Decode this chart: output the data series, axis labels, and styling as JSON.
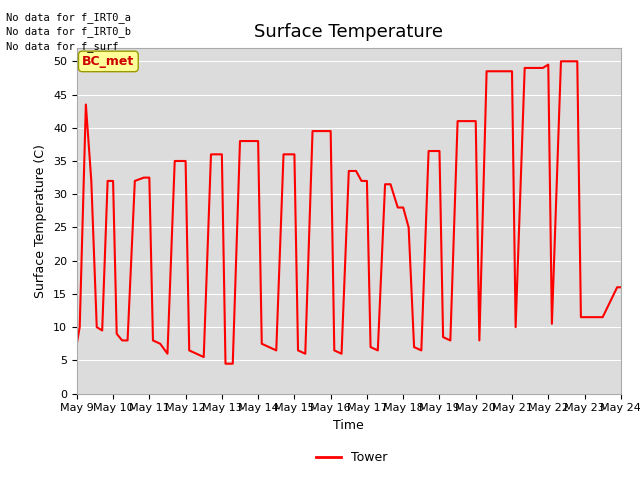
{
  "title": "Surface Temperature",
  "xlabel": "Time",
  "ylabel": "Surface Temperature (C)",
  "ylim": [
    0,
    52
  ],
  "yticks": [
    0,
    5,
    10,
    15,
    20,
    25,
    30,
    35,
    40,
    45,
    50
  ],
  "x_labels": [
    "May 9",
    "May 10",
    "May 11",
    "May 12",
    "May 13",
    "May 14",
    "May 15",
    "May 16",
    "May 17",
    "May 18",
    "May 19",
    "May 20",
    "May 21",
    "May 22",
    "May 23",
    "May 24"
  ],
  "line_color": "#ff0000",
  "line_width": 1.5,
  "bg_color": "#dcdcdc",
  "legend_label": "Tower",
  "no_data_texts": [
    "No data for f_IRT0_a",
    "No data for f_IRT0_b",
    "No data for f_surf"
  ],
  "annotation_text": "BC_met",
  "annotation_color": "#cc0000",
  "annotation_bg": "#ffff99",
  "title_fontsize": 13,
  "label_fontsize": 9,
  "tick_fontsize": 8,
  "time_values": [
    9.0,
    9.08,
    9.25,
    9.4,
    9.55,
    9.7,
    9.85,
    10.0,
    10.1,
    10.25,
    10.4,
    10.6,
    10.85,
    11.0,
    11.1,
    11.3,
    11.5,
    11.7,
    11.85,
    12.0,
    12.1,
    12.3,
    12.5,
    12.7,
    12.85,
    13.0,
    13.1,
    13.3,
    13.5,
    13.65,
    13.85,
    14.0,
    14.1,
    14.3,
    14.5,
    14.7,
    14.85,
    15.0,
    15.1,
    15.3,
    15.5,
    15.7,
    15.85,
    16.0,
    16.1,
    16.3,
    16.5,
    16.7,
    16.85,
    17.0,
    17.1,
    17.3,
    17.5,
    17.65,
    17.85,
    18.0,
    18.15,
    18.3,
    18.5,
    18.7,
    18.85,
    19.0,
    19.1,
    19.3,
    19.5,
    19.7,
    19.85,
    20.0,
    20.1,
    20.3,
    20.55,
    20.75,
    20.85,
    21.0,
    21.1,
    21.35,
    21.6,
    21.8,
    21.85,
    22.0,
    22.1,
    22.35,
    22.6,
    22.8,
    22.9,
    23.0,
    23.5,
    23.9,
    24.0
  ],
  "temp_values": [
    7.5,
    10.0,
    43.5,
    32.0,
    10.0,
    9.5,
    32.0,
    32.0,
    9.0,
    8.0,
    8.0,
    32.0,
    32.5,
    32.5,
    8.0,
    7.5,
    6.0,
    35.0,
    35.0,
    35.0,
    6.5,
    6.0,
    5.5,
    36.0,
    36.0,
    36.0,
    4.5,
    4.5,
    38.0,
    38.0,
    38.0,
    38.0,
    7.5,
    7.0,
    6.5,
    36.0,
    36.0,
    36.0,
    6.5,
    6.0,
    39.5,
    39.5,
    39.5,
    39.5,
    6.5,
    6.0,
    33.5,
    33.5,
    32.0,
    32.0,
    7.0,
    6.5,
    31.5,
    31.5,
    28.0,
    28.0,
    25.0,
    7.0,
    6.5,
    36.5,
    36.5,
    36.5,
    8.5,
    8.0,
    41.0,
    41.0,
    41.0,
    41.0,
    8.0,
    48.5,
    48.5,
    48.5,
    48.5,
    48.5,
    10.0,
    49.0,
    49.0,
    49.0,
    49.0,
    49.5,
    10.5,
    50.0,
    50.0,
    50.0,
    11.5,
    11.5,
    11.5,
    16.0,
    16.0
  ]
}
